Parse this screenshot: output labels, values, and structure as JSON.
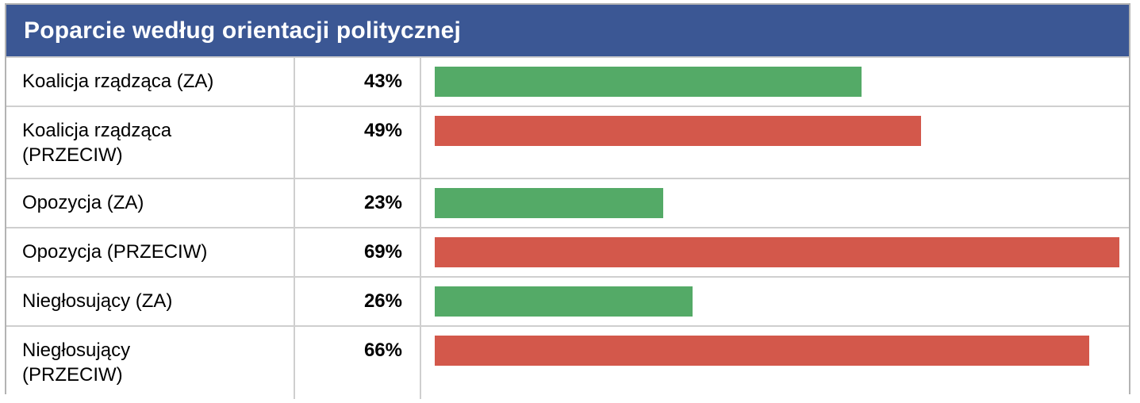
{
  "header": {
    "title": "Poparcie według orientacji politycznej"
  },
  "colors": {
    "header_bg": "#3b5794",
    "header_text": "#ffffff",
    "bar_za_green": "#54aa67",
    "bar_przeciw_red": "#d3584b",
    "border_outer": "#b3b3b3",
    "border_inner": "#cfcfcf",
    "text": "#000000"
  },
  "chart_data": {
    "type": "bar",
    "orientation": "horizontal",
    "title": "Poparcie według orientacji politycznej",
    "categories": [
      "Koalicja rządząca (ZA)",
      "Koalicja rządząca (PRZECIW)",
      "Opozycja (ZA)",
      "Opozycja (PRZECIW)",
      "Niegłosujący (ZA)",
      "Niegłosujący (PRZECIW)"
    ],
    "values": [
      43,
      49,
      23,
      69,
      26,
      66
    ],
    "value_labels": [
      "43%",
      "49%",
      "23%",
      "69%",
      "26%",
      "66%"
    ],
    "bar_stances": [
      "za",
      "przeciw",
      "za",
      "przeciw",
      "za",
      "przeciw"
    ],
    "bar_colors": [
      "#54aa67",
      "#d3584b",
      "#54aa67",
      "#d3584b",
      "#54aa67",
      "#d3584b"
    ],
    "xlabel": "",
    "ylabel": "",
    "xlim": [
      0,
      70
    ],
    "grid": false,
    "legend": false
  },
  "rows": [
    {
      "label": "Koalicja rządząca (ZA)",
      "value_label": "43%",
      "value": 43,
      "stance": "za"
    },
    {
      "label": "Koalicja rządząca\n(PRZECIW)",
      "value_label": "49%",
      "value": 49,
      "stance": "przeciw"
    },
    {
      "label": "Opozycja (ZA)",
      "value_label": "23%",
      "value": 23,
      "stance": "za"
    },
    {
      "label": "Opozycja (PRZECIW)",
      "value_label": "69%",
      "value": 69,
      "stance": "przeciw"
    },
    {
      "label": "Niegłosujący (ZA)",
      "value_label": "26%",
      "value": 26,
      "stance": "za"
    },
    {
      "label": "Niegłosujący\n(PRZECIW)",
      "value_label": "66%",
      "value": 66,
      "stance": "przeciw"
    }
  ]
}
